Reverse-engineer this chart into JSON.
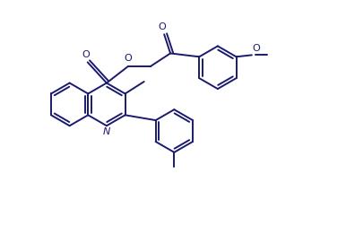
{
  "bg_color": "#ffffff",
  "line_color": "#1a1a6e",
  "line_width": 1.4,
  "figsize": [
    3.86,
    2.52
  ],
  "dpi": 100,
  "xlim": [
    0,
    10
  ],
  "ylim": [
    0,
    6.5
  ]
}
